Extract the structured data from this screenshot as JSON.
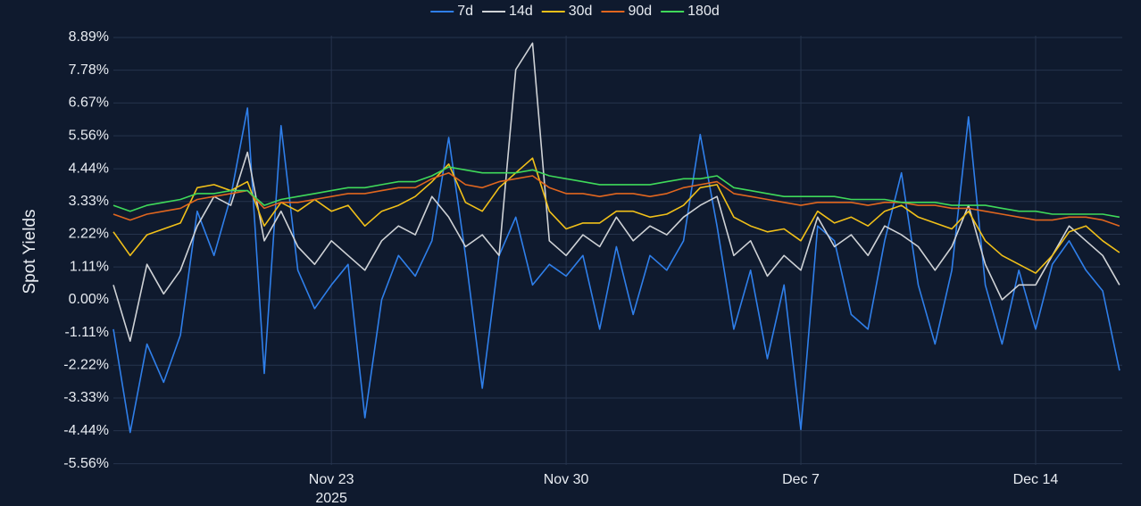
{
  "chart_data": {
    "type": "line",
    "y_label": "Spot Yields",
    "x": [
      "2025-11-16T12:00",
      "2025-11-17T00:00",
      "2025-11-17T12:00",
      "2025-11-18T00:00",
      "2025-11-18T12:00",
      "2025-11-19T00:00",
      "2025-11-19T12:00",
      "2025-11-20T00:00",
      "2025-11-20T12:00",
      "2025-11-21T00:00",
      "2025-11-21T12:00",
      "2025-11-22T00:00",
      "2025-11-22T12:00",
      "2025-11-23T00:00",
      "2025-11-23T12:00",
      "2025-11-24T00:00",
      "2025-11-24T12:00",
      "2025-11-25T00:00",
      "2025-11-25T12:00",
      "2025-11-26T00:00",
      "2025-11-26T12:00",
      "2025-11-27T00:00",
      "2025-11-27T12:00",
      "2025-11-28T00:00",
      "2025-11-28T12:00",
      "2025-11-29T00:00",
      "2025-11-29T12:00",
      "2025-11-30T00:00",
      "2025-11-30T12:00",
      "2025-12-01T00:00",
      "2025-12-01T12:00",
      "2025-12-02T00:00",
      "2025-12-02T12:00",
      "2025-12-03T00:00",
      "2025-12-03T12:00",
      "2025-12-04T00:00",
      "2025-12-04T12:00",
      "2025-12-05T00:00",
      "2025-12-05T12:00",
      "2025-12-06T00:00",
      "2025-12-06T12:00",
      "2025-12-07T00:00",
      "2025-12-07T12:00",
      "2025-12-08T00:00",
      "2025-12-08T12:00",
      "2025-12-09T00:00",
      "2025-12-09T12:00",
      "2025-12-10T00:00",
      "2025-12-10T12:00",
      "2025-12-11T00:00",
      "2025-12-11T12:00",
      "2025-12-12T00:00",
      "2025-12-12T12:00",
      "2025-12-13T00:00",
      "2025-12-13T12:00",
      "2025-12-14T00:00",
      "2025-12-14T12:00",
      "2025-12-15T00:00",
      "2025-12-15T12:00",
      "2025-12-16T00:00",
      "2025-12-16T12:00"
    ],
    "series": [
      {
        "name": "7d",
        "color": "#2f7fea",
        "values": [
          -1.0,
          -4.5,
          -1.5,
          -2.8,
          -1.2,
          3.0,
          1.5,
          3.5,
          6.5,
          -2.5,
          5.9,
          1.0,
          -0.3,
          0.5,
          1.2,
          -4.0,
          0.0,
          1.5,
          0.8,
          2.0,
          5.5,
          1.5,
          -3.0,
          1.5,
          2.8,
          0.5,
          1.2,
          0.8,
          1.5,
          -1.0,
          1.8,
          -0.5,
          1.5,
          1.0,
          2.0,
          5.6,
          2.5,
          -1.0,
          1.0,
          -2.0,
          0.5,
          -4.4,
          2.5,
          2.0,
          -0.5,
          -1.0,
          2.0,
          4.3,
          0.5,
          -1.5,
          1.0,
          6.2,
          0.5,
          -1.5,
          1.0,
          -1.0,
          1.2,
          2.0,
          1.0,
          0.3,
          -2.4
        ]
      },
      {
        "name": "14d",
        "color": "#cfd2d6",
        "values": [
          0.5,
          -1.4,
          1.2,
          0.2,
          1.0,
          2.5,
          3.5,
          3.2,
          5.0,
          2.0,
          3.0,
          1.8,
          1.2,
          2.0,
          1.5,
          1.0,
          2.0,
          2.5,
          2.2,
          3.5,
          2.8,
          1.8,
          2.2,
          1.5,
          7.8,
          8.7,
          2.0,
          1.5,
          2.2,
          1.8,
          2.8,
          2.0,
          2.5,
          2.2,
          2.8,
          3.2,
          3.5,
          1.5,
          2.0,
          0.8,
          1.5,
          1.0,
          2.8,
          1.8,
          2.2,
          1.5,
          2.5,
          2.2,
          1.8,
          1.0,
          1.8,
          3.2,
          1.2,
          0.0,
          0.5,
          0.5,
          1.5,
          2.5,
          2.0,
          1.5,
          0.5
        ]
      },
      {
        "name": "30d",
        "color": "#f1c019",
        "values": [
          2.3,
          1.5,
          2.2,
          2.4,
          2.6,
          3.8,
          3.9,
          3.7,
          4.0,
          2.5,
          3.3,
          3.0,
          3.4,
          3.0,
          3.2,
          2.5,
          3.0,
          3.2,
          3.5,
          4.0,
          4.6,
          3.3,
          3.0,
          3.8,
          4.3,
          4.8,
          3.0,
          2.4,
          2.6,
          2.6,
          3.0,
          3.0,
          2.8,
          2.9,
          3.2,
          3.8,
          3.9,
          2.8,
          2.5,
          2.3,
          2.4,
          2.0,
          3.0,
          2.6,
          2.8,
          2.5,
          3.0,
          3.2,
          2.8,
          2.6,
          2.4,
          3.0,
          2.0,
          1.5,
          1.2,
          0.9,
          1.5,
          2.3,
          2.5,
          2.0,
          1.6
        ]
      },
      {
        "name": "90d",
        "color": "#e0661f",
        "values": [
          2.9,
          2.7,
          2.9,
          3.0,
          3.1,
          3.4,
          3.5,
          3.6,
          3.7,
          3.1,
          3.3,
          3.3,
          3.4,
          3.5,
          3.6,
          3.6,
          3.7,
          3.8,
          3.8,
          4.1,
          4.3,
          3.9,
          3.8,
          4.0,
          4.1,
          4.2,
          3.8,
          3.6,
          3.6,
          3.5,
          3.6,
          3.6,
          3.5,
          3.6,
          3.8,
          3.9,
          4.0,
          3.6,
          3.5,
          3.4,
          3.3,
          3.2,
          3.3,
          3.3,
          3.3,
          3.2,
          3.3,
          3.3,
          3.2,
          3.2,
          3.1,
          3.1,
          3.0,
          2.9,
          2.8,
          2.7,
          2.7,
          2.8,
          2.8,
          2.7,
          2.5
        ]
      },
      {
        "name": "180d",
        "color": "#3fd95a",
        "values": [
          3.2,
          3.0,
          3.2,
          3.3,
          3.4,
          3.6,
          3.6,
          3.7,
          3.7,
          3.2,
          3.4,
          3.5,
          3.6,
          3.7,
          3.8,
          3.8,
          3.9,
          4.0,
          4.0,
          4.2,
          4.5,
          4.4,
          4.3,
          4.3,
          4.3,
          4.4,
          4.2,
          4.1,
          4.0,
          3.9,
          3.9,
          3.9,
          3.9,
          4.0,
          4.1,
          4.1,
          4.2,
          3.8,
          3.7,
          3.6,
          3.5,
          3.5,
          3.5,
          3.5,
          3.4,
          3.4,
          3.4,
          3.3,
          3.3,
          3.3,
          3.2,
          3.2,
          3.2,
          3.1,
          3.0,
          3.0,
          2.9,
          2.9,
          2.9,
          2.9,
          2.8
        ]
      }
    ],
    "xlim": [
      "2025-11-16T12:00",
      "2025-12-16T14:00"
    ],
    "xticks": [
      {
        "value": "2025-11-23T00:00",
        "label": "Nov 23\n2025"
      },
      {
        "value": "2025-11-30T00:00",
        "label": "Nov 30"
      },
      {
        "value": "2025-12-07T00:00",
        "label": "Dec 7"
      },
      {
        "value": "2025-12-14T00:00",
        "label": "Dec 14"
      }
    ],
    "ylim": [
      -5.6,
      8.95
    ],
    "yticks": [
      {
        "value": 8.89,
        "label": "8.89%"
      },
      {
        "value": 7.78,
        "label": "7.78%"
      },
      {
        "value": 6.67,
        "label": "6.67%"
      },
      {
        "value": 5.56,
        "label": "5.56%"
      },
      {
        "value": 4.44,
        "label": "4.44%"
      },
      {
        "value": 3.33,
        "label": "3.33%"
      },
      {
        "value": 2.22,
        "label": "2.22%"
      },
      {
        "value": 1.11,
        "label": "1.11%"
      },
      {
        "value": 0,
        "label": "0.00%"
      },
      {
        "value": -1.11,
        "label": "-1.11%"
      },
      {
        "value": -2.22,
        "label": "-2.22%"
      },
      {
        "value": -3.33,
        "label": "-3.33%"
      },
      {
        "value": -4.44,
        "label": "-4.44%"
      },
      {
        "value": -5.56,
        "label": "-5.56%"
      }
    ],
    "grid": true,
    "legend": "top"
  }
}
